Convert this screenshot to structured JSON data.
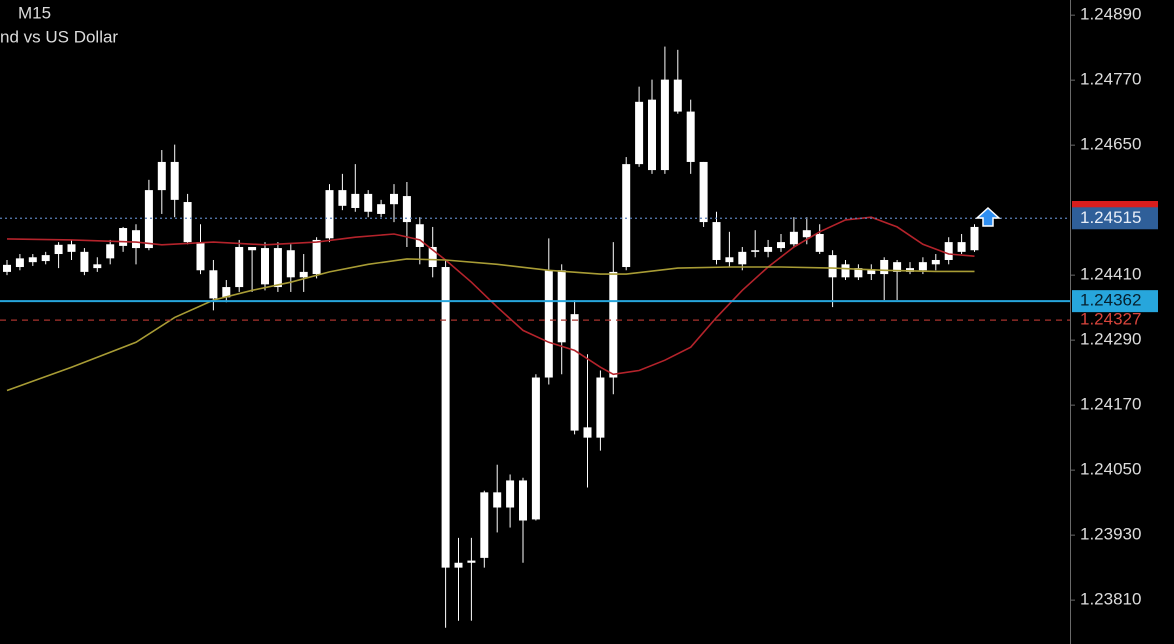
{
  "chart_data": {
    "type": "candlestick",
    "title": "M15",
    "subtitle": "nd vs US Dollar",
    "ylim": [
      1.23729,
      1.24918
    ],
    "yticks": [
      {
        "value": 1.2489,
        "label": "1.24890"
      },
      {
        "value": 1.2477,
        "label": "1.24770"
      },
      {
        "value": 1.2465,
        "label": "1.24650"
      },
      {
        "value": 1.2441,
        "label": "1.24410"
      },
      {
        "value": 1.2429,
        "label": "1.24290"
      },
      {
        "value": 1.2417,
        "label": "1.24170"
      },
      {
        "value": 1.2405,
        "label": "1.24050"
      },
      {
        "value": 1.2393,
        "label": "1.23930"
      },
      {
        "value": 1.2381,
        "label": "1.23810"
      }
    ],
    "color": "#ffffff",
    "open": [
      1.24416,
      1.24425,
      1.24434,
      1.24447,
      1.24449,
      1.24467,
      1.24453,
      1.24423,
      1.24441,
      1.24464,
      1.24493,
      1.2446,
      1.24567,
      1.24619,
      1.24545,
      1.24471,
      1.24419,
      1.24369,
      1.24388,
      1.24462,
      1.24393,
      1.2446,
      1.24406,
      1.24416,
      1.24412,
      1.24478,
      1.24567,
      1.24534,
      1.2456,
      1.24523,
      1.24541,
      1.24556,
      1.24504,
      1.24462,
      1.24425,
      1.2387,
      1.23879,
      1.23888,
      1.24009,
      1.23981,
      1.24031,
      1.23959,
      1.24221,
      1.24419,
      1.24338,
      1.2411,
      1.2411,
      1.24221,
      1.24425,
      1.24615,
      1.24734,
      1.24604,
      1.24771,
      1.24712,
      1.24619,
      1.24508,
      1.24443,
      1.2443,
      1.24456,
      1.24453,
      1.2446,
      1.24467,
      1.2448,
      1.24486,
      1.24447,
      1.2443,
      1.24406,
      1.24421,
      1.24412,
      1.24434,
      1.24416,
      1.24419,
      1.2443,
      1.24438,
      1.24453,
      1.24456
    ],
    "high": [
      1.24438,
      1.24449,
      1.24449,
      1.24453,
      1.24471,
      1.24475,
      1.2446,
      1.24443,
      1.24475,
      1.24499,
      1.24504,
      1.24586,
      1.24641,
      1.24651,
      1.2456,
      1.24504,
      1.24438,
      1.24401,
      1.24475,
      1.24462,
      1.24471,
      1.24471,
      1.24467,
      1.24449,
      1.2448,
      1.24578,
      1.24597,
      1.24615,
      1.24567,
      1.24549,
      1.24578,
      1.24582,
      1.24517,
      1.24499,
      1.24438,
      1.23925,
      1.23925,
      1.24012,
      1.2406,
      1.24042,
      1.24036,
      1.24227,
      1.24478,
      1.2443,
      1.24364,
      1.24264,
      1.24234,
      1.24471,
      1.24628,
      1.24758,
      1.24771,
      1.24832,
      1.24826,
      1.24734,
      1.24619,
      1.24527,
      1.2449,
      1.24462,
      1.24493,
      1.24475,
      1.24486,
      1.24517,
      1.24517,
      1.24504,
      1.24456,
      1.24438,
      1.2443,
      1.2443,
      1.24443,
      1.24438,
      1.24434,
      1.24443,
      1.24449,
      1.2448,
      1.24486,
      1.24504
    ],
    "low": [
      1.2441,
      1.24419,
      1.24427,
      1.2443,
      1.24423,
      1.24438,
      1.2441,
      1.24416,
      1.2443,
      1.24453,
      1.2443,
      1.24456,
      1.24523,
      1.24517,
      1.24467,
      1.24412,
      1.24345,
      1.2436,
      1.24379,
      1.24379,
      1.24382,
      1.24379,
      1.24379,
      1.24379,
      1.24404,
      1.24471,
      1.2453,
      1.24527,
      1.24517,
      1.24517,
      1.24508,
      1.24462,
      1.2443,
      1.24406,
      1.23759,
      1.23772,
      1.23772,
      1.2387,
      1.23935,
      1.23944,
      1.23879,
      1.23957,
      1.24208,
      1.24227,
      1.24116,
      1.24018,
      1.24086,
      1.2419,
      1.24419,
      1.2461,
      1.24597,
      1.24597,
      1.24708,
      1.24597,
      1.24499,
      1.2443,
      1.24425,
      1.24419,
      1.24443,
      1.24443,
      1.24453,
      1.24462,
      1.24467,
      1.24449,
      1.24351,
      1.24401,
      1.24401,
      1.24401,
      1.24364,
      1.24364,
      1.24412,
      1.24412,
      1.24419,
      1.2443,
      1.24449,
      1.24453
    ],
    "close": [
      1.24429,
      1.24441,
      1.24443,
      1.24436,
      1.24466,
      1.24453,
      1.24416,
      1.2443,
      1.24467,
      1.24497,
      1.2446,
      1.24567,
      1.24619,
      1.24549,
      1.24471,
      1.24419,
      1.24367,
      1.24388,
      1.24462,
      1.24456,
      1.2446,
      1.24388,
      1.24456,
      1.24406,
      1.24475,
      1.24567,
      1.24538,
      1.2456,
      1.24527,
      1.24541,
      1.2456,
      1.24508,
      1.24462,
      1.24425,
      1.2387,
      1.23879,
      1.23883,
      1.24009,
      1.23981,
      1.24031,
      1.23957,
      1.24221,
      1.24419,
      1.24286,
      1.24123,
      1.24129,
      1.24221,
      1.24416,
      1.24615,
      1.2473,
      1.24604,
      1.24771,
      1.24712,
      1.24619,
      1.24508,
      1.24438,
      1.24434,
      1.24453,
      1.24453,
      1.24462,
      1.24471,
      1.2449,
      1.24493,
      1.24453,
      1.24406,
      1.24406,
      1.24423,
      1.24412,
      1.24438,
      1.24416,
      1.24423,
      1.24434,
      1.24438,
      1.24471,
      1.24471,
      1.24499
    ],
    "lines": [
      {
        "color": "#b4232b",
        "x": [
          0,
          5,
          10,
          12,
          16,
          20,
          24,
          27,
          30,
          32,
          34,
          36,
          38,
          40,
          42,
          44,
          46,
          47,
          49,
          51,
          53,
          55,
          57,
          59,
          61,
          63,
          65,
          67,
          69,
          71,
          73,
          75
        ],
        "values": [
          1.24477,
          1.24475,
          1.24471,
          1.24466,
          1.24471,
          1.24466,
          1.24471,
          1.2448,
          1.24486,
          1.24475,
          1.24438,
          1.24397,
          1.24351,
          1.24308,
          1.24286,
          1.24271,
          1.2424,
          1.24227,
          1.24234,
          1.24253,
          1.24277,
          1.24332,
          1.24382,
          1.24425,
          1.24462,
          1.2449,
          1.24512,
          1.24517,
          1.24499,
          1.24467,
          1.24449,
          1.24445
        ]
      },
      {
        "color": "#a89c35",
        "x": [
          0,
          5,
          10,
          13,
          16,
          19,
          22,
          25,
          28,
          31,
          34,
          38,
          42,
          46,
          48,
          52,
          56,
          60,
          64,
          68,
          72,
          75
        ],
        "values": [
          1.24197,
          1.2424,
          1.24286,
          1.24332,
          1.24364,
          1.24382,
          1.24397,
          1.24416,
          1.2443,
          1.2444,
          1.24438,
          1.2443,
          1.24419,
          1.24412,
          1.24412,
          1.24423,
          1.24425,
          1.24425,
          1.24423,
          1.24419,
          1.24417,
          1.24417
        ]
      }
    ],
    "price_lines": [
      {
        "value": 1.24515,
        "color": "#5a7fb8",
        "style": "dotted",
        "label_bg": "#2f5f99",
        "label_color": "#e8eef8"
      },
      {
        "value": 1.24362,
        "color": "#27a6dc",
        "style": "solid",
        "label_bg": "#27a6dc",
        "label_color": "#06202e"
      },
      {
        "value": 1.24327,
        "color": "#a8332e",
        "style": "dashed",
        "label_bg": "none",
        "label_color": "#d8453c"
      }
    ]
  }
}
